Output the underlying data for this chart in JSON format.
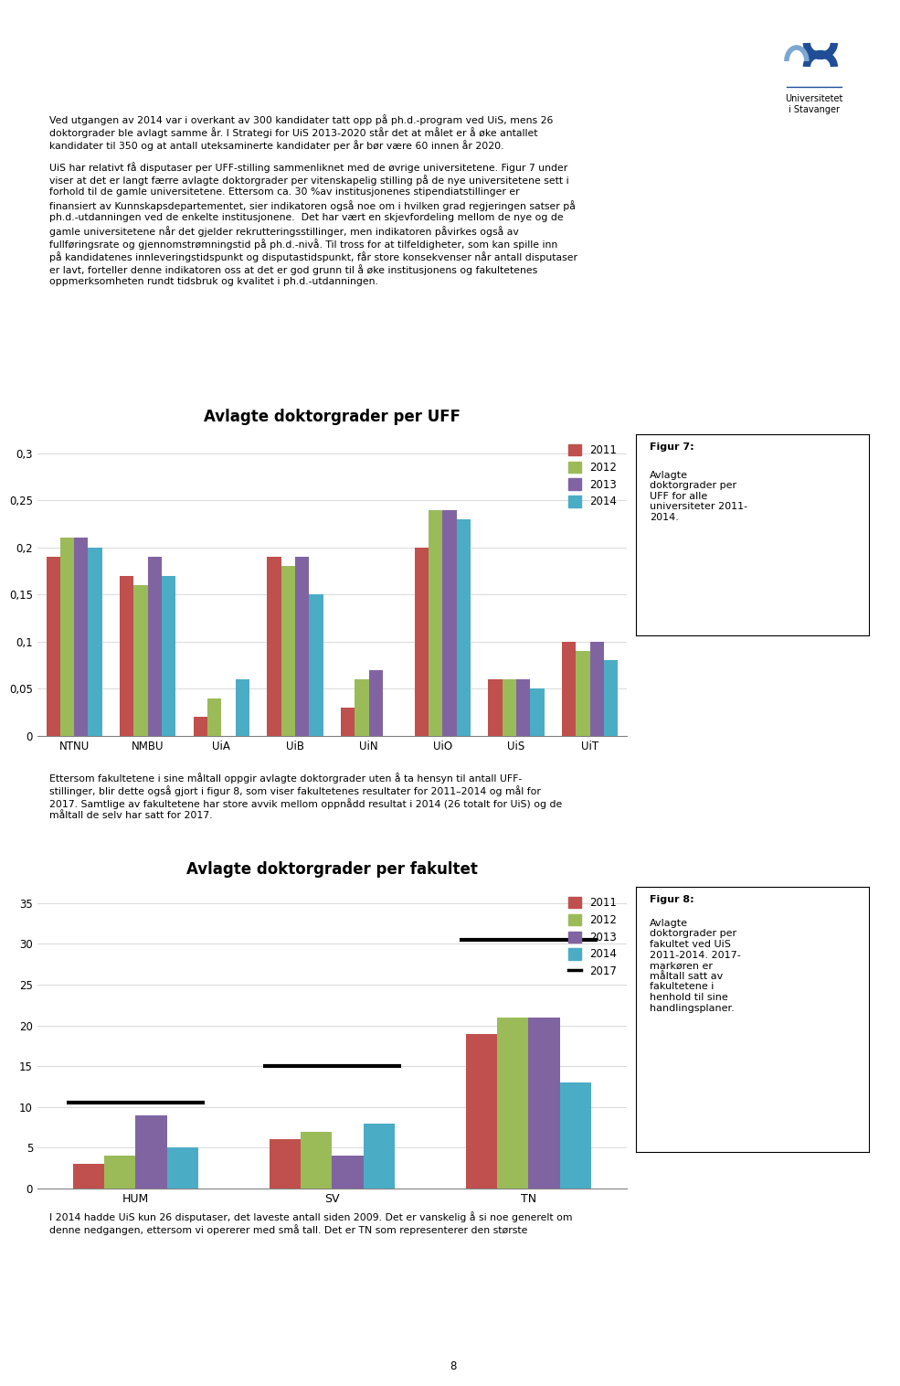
{
  "page_bg": "#ffffff",
  "text_block1_lines": [
    "Ved utgangen av 2014 var i overkant av 300 kandidater tatt opp på ph.d.-program ved UiS, mens 26",
    "doktorgrader ble avlagt samme år. I Strategi for UiS 2013-2020 står det at målet er å øke antallet",
    "kandidater til 350 og at antall uteksaminerte kandidater per år bør være 60 innen år 2020."
  ],
  "text_block2_lines": [
    "UiS har relativt få disputaser per UFF-stilling sammenliknet med de øvrige universitetene. Figur 7 under",
    "viser at det er langt færre avlagte doktorgrader per vitenskapelig stilling på de nye universitetene sett i",
    "forhold til de gamle universitetene. Ettersom ca. 30 %av institusjonenes stipendiatstillinger er",
    "finansiert av Kunnskapsdepartementet, sier indikatoren også noe om i hvilken grad regjeringen satser på",
    "ph.d.-utdanningen ved de enkelte institusjonene.  Det har vært en skjevfordeling mellom de nye og de",
    "gamle universitetene når det gjelder rekrutteringsstillinger, men indikatoren påvirkes også av",
    "fullføringsrate og gjennomstrømningstid på ph.d.-nivå. Til tross for at tilfeldigheter, som kan spille inn",
    "på kandidatenes innleveringstidspunkt og disputastidspunkt, får store konsekvenser når antall disputaser",
    "er lavt, forteller denne indikatoren oss at det er god grunn til å øke institusjonens og fakultetenes",
    "oppmerksomheten rundt tidsbruk og kvalitet i ph.d.-utdanningen."
  ],
  "chart1_title": "Avlagte doktorgrader per UFF",
  "chart1_categories": [
    "NTNU",
    "NMBU",
    "UiA",
    "UiB",
    "UiN",
    "UiO",
    "UiS",
    "UiT"
  ],
  "chart1_years": [
    "2011",
    "2012",
    "2013",
    "2014"
  ],
  "chart1_colors": [
    "#C0504D",
    "#9BBB59",
    "#8064A2",
    "#4BACC6"
  ],
  "chart1_data": {
    "NTNU": [
      0.19,
      0.21,
      0.21,
      0.2
    ],
    "NMBU": [
      0.17,
      0.16,
      0.19,
      0.17
    ],
    "UiA": [
      0.02,
      0.04,
      0.0,
      0.06
    ],
    "UiB": [
      0.19,
      0.18,
      0.19,
      0.15
    ],
    "UiN": [
      0.03,
      0.06,
      0.07,
      0.0
    ],
    "UiO": [
      0.2,
      0.24,
      0.24,
      0.23
    ],
    "UiS": [
      0.06,
      0.06,
      0.06,
      0.05
    ],
    "UiT": [
      0.1,
      0.09,
      0.1,
      0.08
    ]
  },
  "chart1_ylim": [
    0,
    0.32
  ],
  "chart1_yticks": [
    0,
    0.05,
    0.1,
    0.15,
    0.2,
    0.25,
    0.3
  ],
  "chart1_ytick_labels": [
    "0",
    "0,05",
    "0,1",
    "0,15",
    "0,2",
    "0,25",
    "0,3"
  ],
  "figur7_title": "Figur 7:",
  "figur7_body": "Avlagte\ndoktorgrader per\nUFF for alle\nuniversiteter 2011-\n2014.",
  "text_block3_lines": [
    "Ettersom fakultetene i sine måltall oppgir avlagte doktorgrader uten å ta hensyn til antall UFF-",
    "stillinger, blir dette også gjort i figur 8, som viser fakultetenes resultater for 2011–2014 og mål for",
    "2017. Samtlige av fakultetene har store avvik mellom oppnådd resultat i 2014 (26 totalt for UiS) og de",
    "måltall de selv har satt for 2017."
  ],
  "chart2_title": "Avlagte doktorgrader per fakultet",
  "chart2_categories": [
    "HUM",
    "SV",
    "TN"
  ],
  "chart2_years": [
    "2011",
    "2012",
    "2013",
    "2014",
    "2017"
  ],
  "chart2_colors": [
    "#C0504D",
    "#9BBB59",
    "#8064A2",
    "#4BACC6",
    "#000000"
  ],
  "chart2_data": {
    "HUM": [
      3,
      4,
      9,
      5,
      10.5
    ],
    "SV": [
      6,
      7,
      4,
      8,
      15
    ],
    "TN": [
      19,
      21,
      21,
      13,
      30.5
    ]
  },
  "chart2_ylim": [
    0,
    37
  ],
  "chart2_yticks": [
    0,
    5,
    10,
    15,
    20,
    25,
    30,
    35
  ],
  "chart2_ytick_labels": [
    "0",
    "5",
    "10",
    "15",
    "20",
    "25",
    "30",
    "35"
  ],
  "figur8_title": "Figur 8:",
  "figur8_body": "Avlagte\ndoktorgrader per\nfakultet ved UiS\n2011-2014. 2017-\nmarkøren er\nmåltall satt av\nfakultetene i\nhenhold til sine\nhandlingsplaner.",
  "text_block4_lines": [
    "I 2014 hadde UiS kun 26 disputaser, det laveste antall siden 2009. Det er vanskelig å si noe generelt om",
    "denne nedgangen, ettersom vi opererer med små tall. Det er TN som representerer den største"
  ],
  "page_number": "8"
}
